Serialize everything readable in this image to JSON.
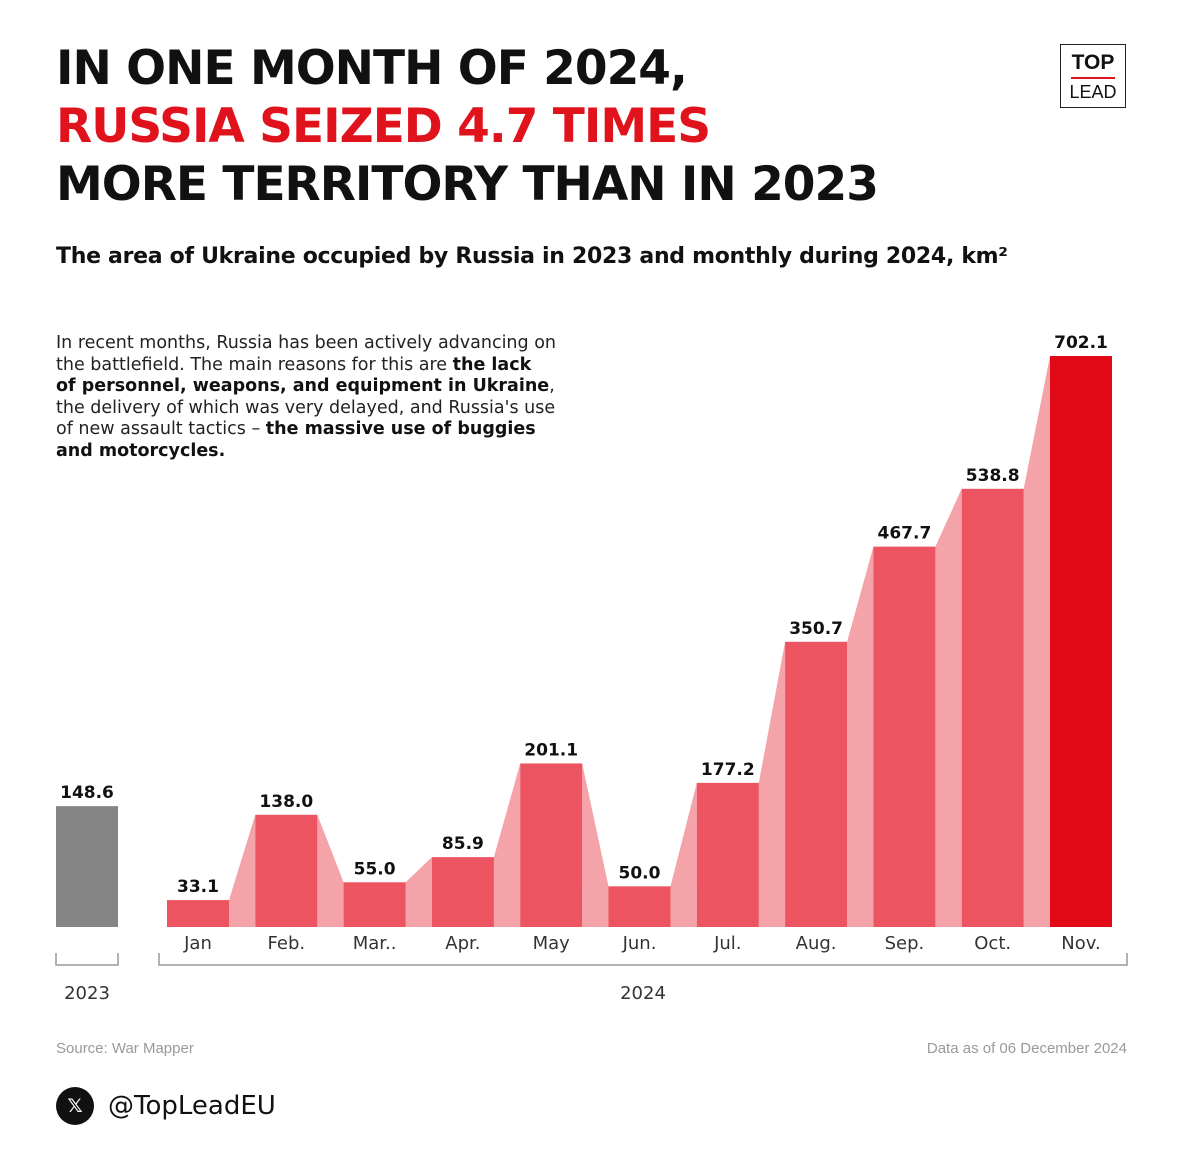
{
  "headline": {
    "line1": "IN ONE MONTH OF 2024,",
    "line2": "RUSSIA SEIZED 4.7 TIMES",
    "line3": "MORE TERRITORY THAN IN 2023"
  },
  "logo": {
    "top": "TOP",
    "bottom": "LEAD"
  },
  "subtitle": "The area of Ukraine occupied by Russia in 2023 and monthly during 2024, km²",
  "note": {
    "p1": "In recent months, Russia has been actively advancing on the battlefield. The main reasons for this are ",
    "b1": "the lack of personnel, weapons, and equipment in Ukraine",
    "p2": ", the delivery of which was very delayed, and Russia's use of new assault tactics – ",
    "b2": "the massive use of buggies and motorcycles."
  },
  "chart_data": {
    "type": "bar",
    "title": "The area of Ukraine occupied by Russia in 2023 and monthly during 2024, km²",
    "ylim": [
      0,
      702.1
    ],
    "grid": false,
    "series": [
      {
        "group": "2023",
        "categories": [
          ""
        ],
        "values": [
          148.6
        ],
        "labels": [
          "148.6"
        ],
        "color": "#858585"
      },
      {
        "group": "2024",
        "categories": [
          "Jan",
          "Feb.",
          "Mar..",
          "Apr.",
          "May",
          "Jun.",
          "Jul.",
          "Aug.",
          "Sep.",
          "Oct.",
          "Nov."
        ],
        "values": [
          33.1,
          138.0,
          55.0,
          85.9,
          201.1,
          50.0,
          177.2,
          350.7,
          467.7,
          538.8,
          702.1
        ],
        "labels": [
          "33.1",
          "138.0",
          "55.0",
          "85.9",
          "201.1",
          "50.0",
          "177.2",
          "350.7",
          "467.7",
          "538.8",
          "702.1"
        ],
        "color": "#ec5461",
        "highlight_color": "#e30a17",
        "connector_color": "#f4a3a9"
      }
    ],
    "group_labels": [
      "2023",
      "2024"
    ]
  },
  "footer": {
    "source": "Source: War Mapper",
    "as_of": "Data as of 06 December 2024",
    "handle": "@TopLeadEU",
    "icon": "x-logo-icon"
  }
}
